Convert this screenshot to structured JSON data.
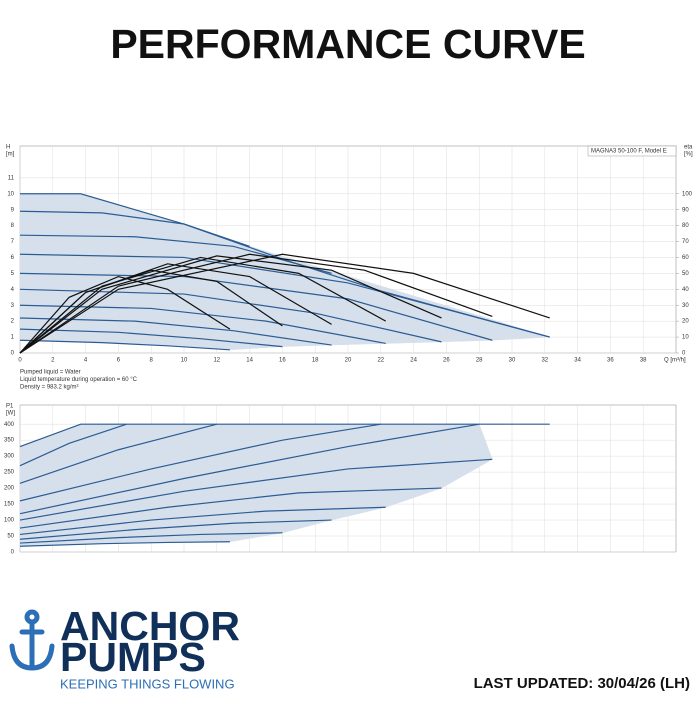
{
  "header": {
    "title": "PERFORMANCE CURVE"
  },
  "chart_data": [
    {
      "type": "line",
      "model_label": "MAGNA3 50-100 F, Model E",
      "y_label": [
        "H",
        "[m]"
      ],
      "y2_label": [
        "eta",
        "[%]"
      ],
      "x_label": "Q [m³/h]",
      "xlim": [
        0,
        40
      ],
      "xticks": [
        0,
        2,
        4,
        6,
        8,
        10,
        12,
        14,
        16,
        18,
        20,
        22,
        24,
        26,
        28,
        30,
        32,
        34,
        36,
        38
      ],
      "x_tick_labels": true,
      "ylim": [
        0,
        13
      ],
      "yticks": [
        0,
        1,
        2,
        3,
        4,
        5,
        6,
        7,
        8,
        9,
        10,
        11
      ],
      "y2lim": [
        0,
        130
      ],
      "y2ticks": [
        0,
        10,
        20,
        30,
        40,
        50,
        60,
        70,
        80,
        90,
        100
      ],
      "grid": true,
      "area_color": "#d5e0ec",
      "series": [
        {
          "color": "#2c5c94",
          "x": [
            0,
            3.7,
            10,
            16,
            22,
            28,
            32.3
          ],
          "values": [
            10,
            10,
            8.1,
            5.9,
            3.9,
            2.2,
            1.0
          ]
        },
        {
          "color": "#2c5c94",
          "x": [
            0,
            5,
            10,
            14
          ],
          "values": [
            8.9,
            8.8,
            8.1,
            6.7
          ]
        },
        {
          "color": "#2c5c94",
          "x": [
            0,
            7,
            13,
            19
          ],
          "values": [
            7.4,
            7.3,
            6.7,
            5.0
          ]
        },
        {
          "color": "#2c5c94",
          "x": [
            0,
            10,
            20,
            32.3
          ],
          "values": [
            6.2,
            6.0,
            4.4,
            1.0
          ]
        },
        {
          "color": "#2c5c94",
          "x": [
            0,
            10,
            20,
            28.8
          ],
          "values": [
            5.0,
            4.8,
            3.4,
            0.8
          ]
        },
        {
          "color": "#2c5c94",
          "x": [
            0,
            10,
            18,
            25.7
          ],
          "values": [
            4.0,
            3.7,
            2.5,
            0.7
          ]
        },
        {
          "color": "#2c5c94",
          "x": [
            0,
            8,
            15,
            22.3
          ],
          "values": [
            3.0,
            2.8,
            2.0,
            0.6
          ]
        },
        {
          "color": "#2c5c94",
          "x": [
            0,
            7,
            13,
            19
          ],
          "values": [
            2.2,
            2.0,
            1.4,
            0.5
          ]
        },
        {
          "color": "#2c5c94",
          "x": [
            0,
            6,
            11,
            16
          ],
          "values": [
            1.5,
            1.3,
            0.9,
            0.4
          ]
        },
        {
          "color": "#2c5c94",
          "x": [
            0,
            5,
            9,
            12.8
          ],
          "values": [
            0.8,
            0.65,
            0.45,
            0.2
          ]
        },
        {
          "color": "#111111",
          "axis": "y2",
          "x": [
            0,
            3,
            6,
            9,
            12.8
          ],
          "values": [
            0,
            35,
            48,
            40,
            15
          ]
        },
        {
          "color": "#111111",
          "axis": "y2",
          "x": [
            0,
            4,
            8,
            12,
            16
          ],
          "values": [
            0,
            38,
            52,
            45,
            17
          ]
        },
        {
          "color": "#111111",
          "axis": "y2",
          "x": [
            0,
            4,
            9,
            14,
            19
          ],
          "values": [
            0,
            38,
            56,
            48,
            18
          ]
        },
        {
          "color": "#111111",
          "axis": "y2",
          "x": [
            0,
            5,
            11,
            17,
            22.3
          ],
          "values": [
            0,
            42,
            60,
            50,
            20
          ]
        },
        {
          "color": "#111111",
          "axis": "y2",
          "x": [
            0,
            5,
            12,
            19,
            25.7
          ],
          "values": [
            0,
            40,
            61,
            52,
            22
          ]
        },
        {
          "color": "#111111",
          "axis": "y2",
          "x": [
            0,
            6,
            14,
            21,
            28.8
          ],
          "values": [
            0,
            42,
            62,
            52,
            23
          ]
        },
        {
          "color": "#111111",
          "axis": "y2",
          "x": [
            0,
            6,
            16,
            24,
            32.3
          ],
          "values": [
            0,
            40,
            62,
            50,
            22
          ]
        }
      ],
      "annotations": [
        "Pumped liquid = Water",
        "Liquid temperature during operation = 60 °C",
        "Density = 983.2 kg/m³"
      ]
    },
    {
      "type": "line",
      "y_label": [
        "P1",
        "[W]"
      ],
      "xlim": [
        0,
        40
      ],
      "xticks": [
        0,
        2,
        4,
        6,
        8,
        10,
        12,
        14,
        16,
        18,
        20,
        22,
        24,
        26,
        28,
        30,
        32,
        34,
        36,
        38
      ],
      "x_tick_labels": false,
      "ylim": [
        0,
        460
      ],
      "yticks": [
        0,
        50,
        100,
        150,
        200,
        250,
        300,
        350,
        400
      ],
      "grid": true,
      "area_color": "#d5e0ec",
      "series": [
        {
          "color": "#2c5c94",
          "x": [
            0,
            3.7,
            32.3
          ],
          "values": [
            330,
            400,
            400
          ]
        },
        {
          "color": "#2c5c94",
          "x": [
            0,
            3,
            6.5
          ],
          "values": [
            270,
            340,
            400
          ]
        },
        {
          "color": "#2c5c94",
          "x": [
            0,
            6,
            12
          ],
          "values": [
            215,
            320,
            400
          ]
        },
        {
          "color": "#2c5c94",
          "x": [
            0,
            8,
            16,
            22
          ],
          "values": [
            160,
            260,
            350,
            400
          ]
        },
        {
          "color": "#2c5c94",
          "x": [
            0,
            10,
            20,
            28
          ],
          "values": [
            120,
            230,
            330,
            400
          ]
        },
        {
          "color": "#2c5c94",
          "x": [
            0,
            10,
            20,
            28.8
          ],
          "values": [
            100,
            190,
            260,
            290
          ]
        },
        {
          "color": "#2c5c94",
          "x": [
            0,
            9,
            17,
            25.7
          ],
          "values": [
            75,
            140,
            185,
            200
          ]
        },
        {
          "color": "#2c5c94",
          "x": [
            0,
            8,
            15,
            22.3
          ],
          "values": [
            55,
            100,
            128,
            140
          ]
        },
        {
          "color": "#2c5c94",
          "x": [
            0,
            7,
            13,
            19
          ],
          "values": [
            40,
            70,
            90,
            100
          ]
        },
        {
          "color": "#2c5c94",
          "x": [
            0,
            6,
            11,
            16
          ],
          "values": [
            28,
            45,
            55,
            60
          ]
        },
        {
          "color": "#2c5c94",
          "x": [
            0,
            5,
            9,
            12.8
          ],
          "values": [
            18,
            26,
            30,
            32
          ]
        }
      ]
    }
  ],
  "brand": {
    "name_line1": "ANCHOR",
    "name_line2": "PUMPS",
    "tagline": "KEEPING THINGS FLOWING"
  },
  "footer": {
    "last_updated": "LAST UPDATED: 30/04/26 (LH)"
  }
}
